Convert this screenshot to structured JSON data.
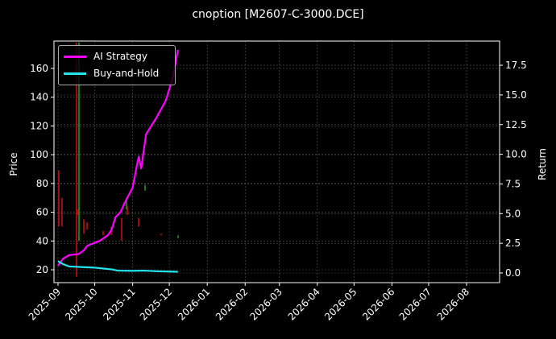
{
  "chart_data": {
    "type": "line",
    "title": "cnoption [M2607-C-3000.DCE]",
    "xlabel": "",
    "ylabel": "Price",
    "ylabel_right": "Return",
    "ylim": [
      12,
      178
    ],
    "ylim_right": [
      -0.6,
      19.7
    ],
    "yticks": [
      20,
      40,
      60,
      80,
      100,
      120,
      140,
      160
    ],
    "yticks_right": [
      "0.0",
      "2.5",
      "5.0",
      "7.5",
      "10.0",
      "12.5",
      "15.0",
      "17.5"
    ],
    "xticks": [
      "2025-09",
      "2025-10",
      "2025-11",
      "2025-12",
      "2026-01",
      "2026-02",
      "2026-03",
      "2026-04",
      "2026-05",
      "2026-06",
      "2026-07",
      "2026-08"
    ],
    "grid": true,
    "legend_position": "upper left",
    "series": [
      {
        "name": "AI Strategy",
        "axis": "right",
        "color": "#ff00ff",
        "x": [
          "2025-09-01",
          "2025-09-05",
          "2025-09-10",
          "2025-09-18",
          "2025-09-22",
          "2025-09-25",
          "2025-10-05",
          "2025-10-12",
          "2025-10-15",
          "2025-10-18",
          "2025-10-22",
          "2025-10-25",
          "2025-11-01",
          "2025-11-04",
          "2025-11-06",
          "2025-11-08",
          "2025-11-12",
          "2025-11-20",
          "2025-11-28",
          "2025-12-04",
          "2025-12-08"
        ],
        "values": [
          0.6,
          1.2,
          1.5,
          1.6,
          1.9,
          2.3,
          2.7,
          3.2,
          3.7,
          4.7,
          5.1,
          5.8,
          7.2,
          8.8,
          9.8,
          8.8,
          11.7,
          13.0,
          14.5,
          16.5,
          18.8
        ]
      },
      {
        "name": "Buy-and-Hold",
        "axis": "right",
        "color": "#22e5f0",
        "x": [
          "2025-09-01",
          "2025-09-05",
          "2025-09-10",
          "2025-09-20",
          "2025-10-01",
          "2025-10-15",
          "2025-10-20",
          "2025-11-01",
          "2025-11-10",
          "2025-11-20",
          "2025-12-08"
        ],
        "values": [
          1.0,
          0.75,
          0.55,
          0.5,
          0.45,
          0.3,
          0.2,
          0.18,
          0.2,
          0.15,
          0.1
        ]
      }
    ],
    "candles_note": "OHLC wick bars (red=down, green=up) plotted on Price axis, Sep-Dec 2025"
  },
  "legend": {
    "items": [
      {
        "label": "AI Strategy",
        "color": "#ff00ff"
      },
      {
        "label": "Buy-and-Hold",
        "color": "#22e5f0"
      }
    ]
  }
}
